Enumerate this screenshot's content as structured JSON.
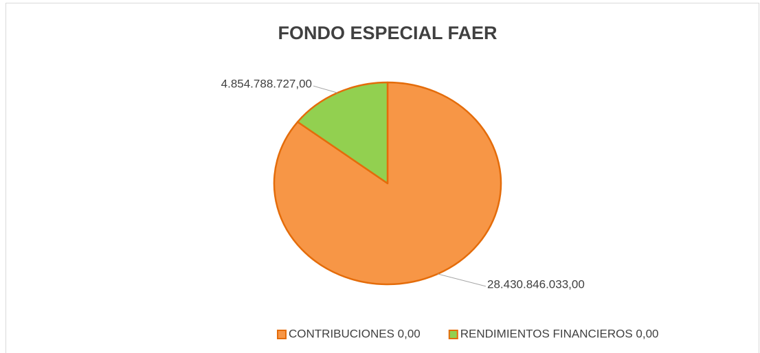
{
  "chart_data": {
    "type": "pie",
    "title": "FONDO ESPECIAL FAER",
    "categories": [
      "CONTRIBUCIONES 0,00",
      "RENDIMIENTOS FINANCIEROS 0,00"
    ],
    "values": [
      28430846033.0,
      4854788727.0
    ],
    "value_labels": [
      "28.430.846.033,00",
      "4.854.788.727,00"
    ],
    "colors": [
      "#f79646",
      "#92d050"
    ],
    "edge_color": "#e46c0a",
    "legend": "bottom"
  }
}
